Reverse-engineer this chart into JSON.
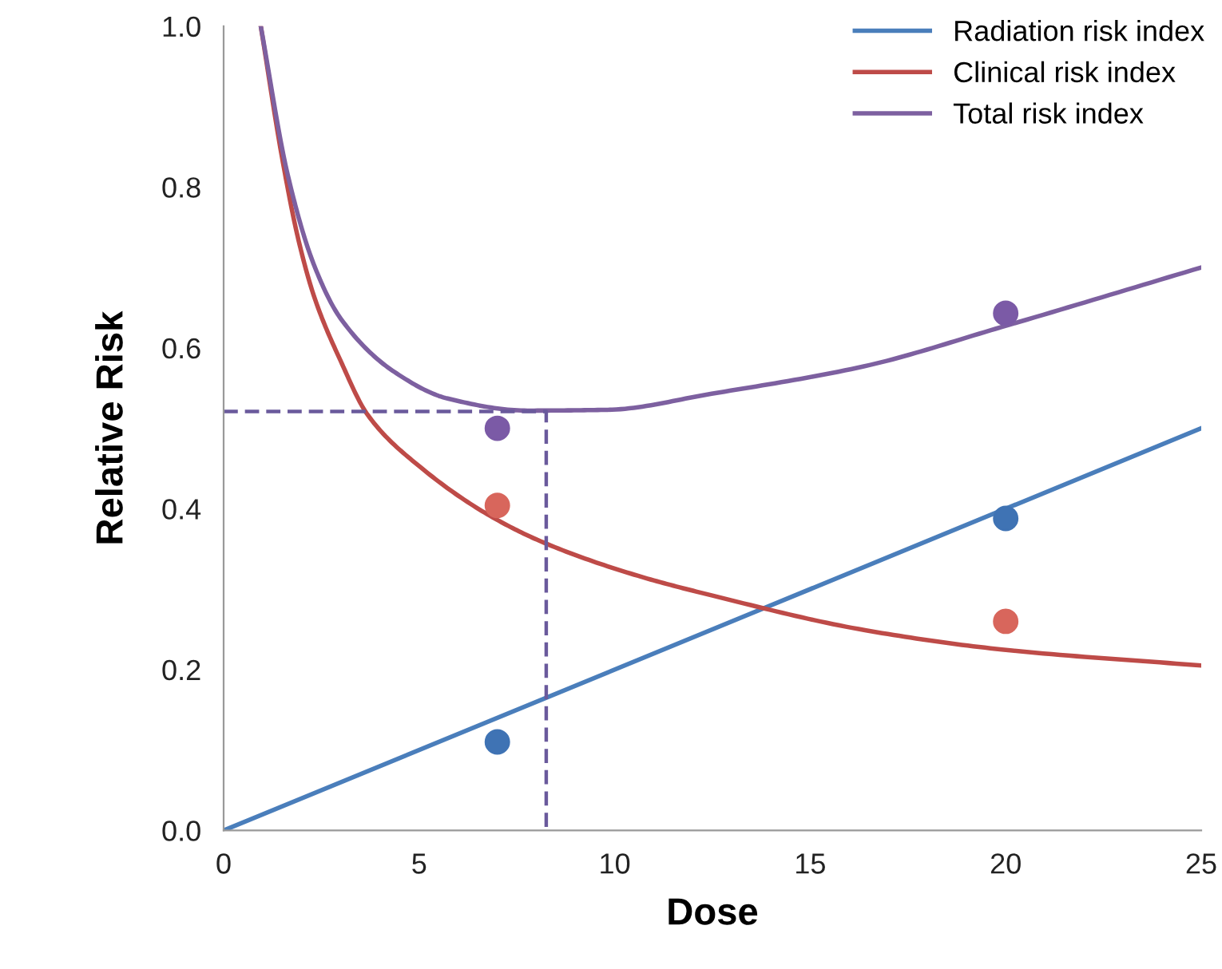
{
  "chart_data": {
    "type": "line",
    "xlabel": "Dose",
    "ylabel": "Relative Risk",
    "xlim": [
      0,
      25
    ],
    "ylim": [
      0,
      1.0
    ],
    "xticks": [
      0,
      5,
      10,
      15,
      20,
      25
    ],
    "yticks": [
      {
        "value": 0,
        "label": "0.0"
      },
      {
        "value": 0.2,
        "label": "0.2"
      },
      {
        "value": 0.4,
        "label": "0.4"
      },
      {
        "value": 0.6,
        "label": "0.6"
      },
      {
        "value": 0.8,
        "label": "0.8"
      },
      {
        "value": 1.0,
        "label": "1.0"
      }
    ],
    "grid": false,
    "legend": "top right",
    "marker": "none",
    "line_style": "solid",
    "series": [
      {
        "name": "Radiation risk index",
        "color": "#4a7ebb",
        "x": [
          0,
          25
        ],
        "values": [
          0,
          0.5
        ]
      },
      {
        "name": "Clinical risk index",
        "color": "#be4b48",
        "x": [
          0.95,
          1.5,
          1.91,
          2.32,
          3.0,
          3.68,
          5.05,
          6.82,
          8.18,
          10.5,
          12.5,
          16.4,
          19.9,
          25
        ],
        "values": [
          1.0,
          0.835,
          0.735,
          0.663,
          0.583,
          0.517,
          0.451,
          0.391,
          0.358,
          0.318,
          0.292,
          0.249,
          0.225,
          0.205
        ]
      },
      {
        "name": "Total risk index",
        "color": "#7d60a0",
        "x": [
          0.95,
          1.64,
          2.32,
          3.0,
          4.37,
          5.73,
          7.77,
          9.82,
          12.48,
          16.37,
          19.9,
          25
        ],
        "values": [
          1.0,
          0.815,
          0.702,
          0.636,
          0.57,
          0.537,
          0.522,
          0.523,
          0.543,
          0.577,
          0.626,
          0.7
        ]
      },
      {
        "type": "line",
        "line_style": "dashed",
        "color": "#6a5a9c",
        "x": [
          0,
          8.25,
          8.25
        ],
        "values": [
          0.521,
          0.521,
          0
        ]
      },
      {
        "type": "scatter",
        "marker": "circle",
        "color": "#3f73b4",
        "x": [
          7,
          20
        ],
        "values": [
          0.11,
          0.388
        ]
      },
      {
        "type": "scatter",
        "marker": "circle",
        "color": "#d8665c",
        "x": [
          7,
          20
        ],
        "values": [
          0.404,
          0.26
        ]
      },
      {
        "type": "scatter",
        "marker": "circle",
        "color": "#7b5aa6",
        "x": [
          7,
          20
        ],
        "values": [
          0.5,
          0.643
        ]
      }
    ]
  }
}
